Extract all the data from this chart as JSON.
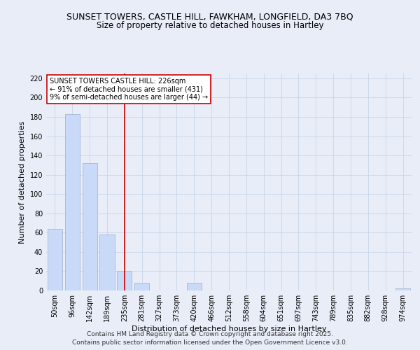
{
  "title_line1": "SUNSET TOWERS, CASTLE HILL, FAWKHAM, LONGFIELD, DA3 7BQ",
  "title_line2": "Size of property relative to detached houses in Hartley",
  "xlabel": "Distribution of detached houses by size in Hartley",
  "ylabel": "Number of detached properties",
  "bar_labels": [
    "50sqm",
    "96sqm",
    "142sqm",
    "189sqm",
    "235sqm",
    "281sqm",
    "327sqm",
    "373sqm",
    "420sqm",
    "466sqm",
    "512sqm",
    "558sqm",
    "604sqm",
    "651sqm",
    "697sqm",
    "743sqm",
    "789sqm",
    "835sqm",
    "882sqm",
    "928sqm",
    "974sqm"
  ],
  "bar_heights": [
    64,
    183,
    132,
    58,
    20,
    8,
    0,
    0,
    8,
    0,
    0,
    0,
    0,
    0,
    0,
    0,
    0,
    0,
    0,
    0,
    2
  ],
  "bar_color": "#c9daf8",
  "bar_edge_color": "#a4b8d4",
  "vline_index": 4,
  "vline_color": "#cc0000",
  "annotation_text": "SUNSET TOWERS CASTLE HILL: 226sqm\n← 91% of detached houses are smaller (431)\n9% of semi-detached houses are larger (44) →",
  "annotation_box_color": "#ffffff",
  "annotation_border_color": "#cc0000",
  "ylim": [
    0,
    225
  ],
  "yticks": [
    0,
    20,
    40,
    60,
    80,
    100,
    120,
    140,
    160,
    180,
    200,
    220
  ],
  "grid_color": "#c8d4e8",
  "background_color": "#e8edf8",
  "footer_line1": "Contains HM Land Registry data © Crown copyright and database right 2025.",
  "footer_line2": "Contains public sector information licensed under the Open Government Licence v3.0.",
  "title_fontsize": 9,
  "subtitle_fontsize": 8.5,
  "axis_label_fontsize": 8,
  "tick_fontsize": 7,
  "annotation_fontsize": 7,
  "footer_fontsize": 6.5
}
